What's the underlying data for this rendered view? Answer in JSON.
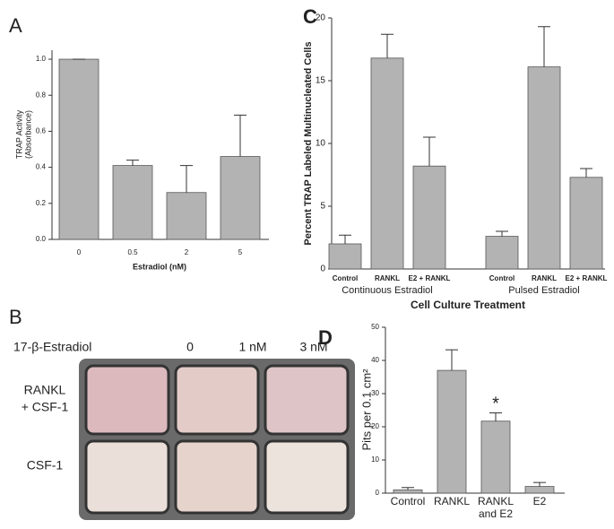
{
  "chart_data": [
    {
      "type": "bar",
      "panel": "A",
      "ylabel": [
        "TRAP Activity",
        "(Absorbance)"
      ],
      "xlabel": "Estradiol (nM)",
      "categories": [
        "0",
        "0.5",
        "2",
        "5"
      ],
      "values": [
        1.0,
        0.41,
        0.26,
        0.46
      ],
      "errors": [
        0,
        0.03,
        0.15,
        0.23
      ],
      "ylim": [
        0,
        1.05
      ],
      "yticks": [
        {
          "value": 0,
          "label": "0.0"
        },
        0.2,
        0.4,
        0.6,
        0.8,
        {
          "value": 1,
          "label": "1.0"
        }
      ],
      "color": "#b3b3b3"
    },
    {
      "type": "bar",
      "panel": "C",
      "ylabel": [
        "Percent TRAP Labeled Multinucleated Cells"
      ],
      "xlabel": "Cell Culture Treatment",
      "categories": [
        "Control",
        "RANKL",
        "E2 + RANKL",
        "Control",
        "RANKL",
        "E2 + RANKL"
      ],
      "groups": [
        "Continuous Estradiol",
        "Pulsed Estradiol"
      ],
      "values": [
        2.0,
        16.8,
        8.2,
        2.6,
        16.1,
        7.3
      ],
      "errors": [
        0.7,
        1.9,
        2.3,
        0.4,
        3.2,
        0.7
      ],
      "ylim": [
        0,
        20
      ],
      "yticks": [
        0,
        5,
        10,
        15,
        20
      ],
      "color": "#b3b3b3"
    },
    {
      "type": "bar",
      "panel": "D",
      "ylabel": [
        "Pits per 0.1 cm²"
      ],
      "categories": [
        [
          "Control"
        ],
        [
          "RANKL"
        ],
        [
          "RANKL",
          "and E2"
        ],
        [
          "E2"
        ]
      ],
      "values": [
        1,
        37,
        21.7,
        2
      ],
      "errors": [
        0.7,
        6.2,
        2.5,
        1.2
      ],
      "annotations": [
        null,
        null,
        "*",
        null
      ],
      "ylim": [
        0,
        50
      ],
      "yticks": [
        0,
        10,
        20,
        30,
        40,
        50
      ],
      "color": "#b3b3b3"
    }
  ],
  "photo": {
    "panel": "B",
    "row_header": "17-β-Estradiol",
    "columns": [
      "0",
      "1 nM",
      "3 nM"
    ],
    "rows": [
      [
        "RANKL",
        "+ CSF-1"
      ],
      [
        "CSF-1"
      ]
    ]
  }
}
